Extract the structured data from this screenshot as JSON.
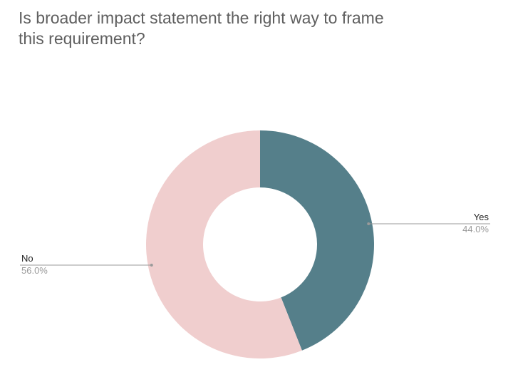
{
  "chart_data": {
    "type": "pie",
    "donut": true,
    "title": "Is broader impact statement the right way to frame this requirement?",
    "slices": [
      {
        "label": "Yes",
        "value": 44.0,
        "value_label": "44.0%",
        "color": "#557f8a"
      },
      {
        "label": "No",
        "value": 56.0,
        "value_label": "56.0%",
        "color": "#f0cece"
      }
    ],
    "legend": "none"
  }
}
